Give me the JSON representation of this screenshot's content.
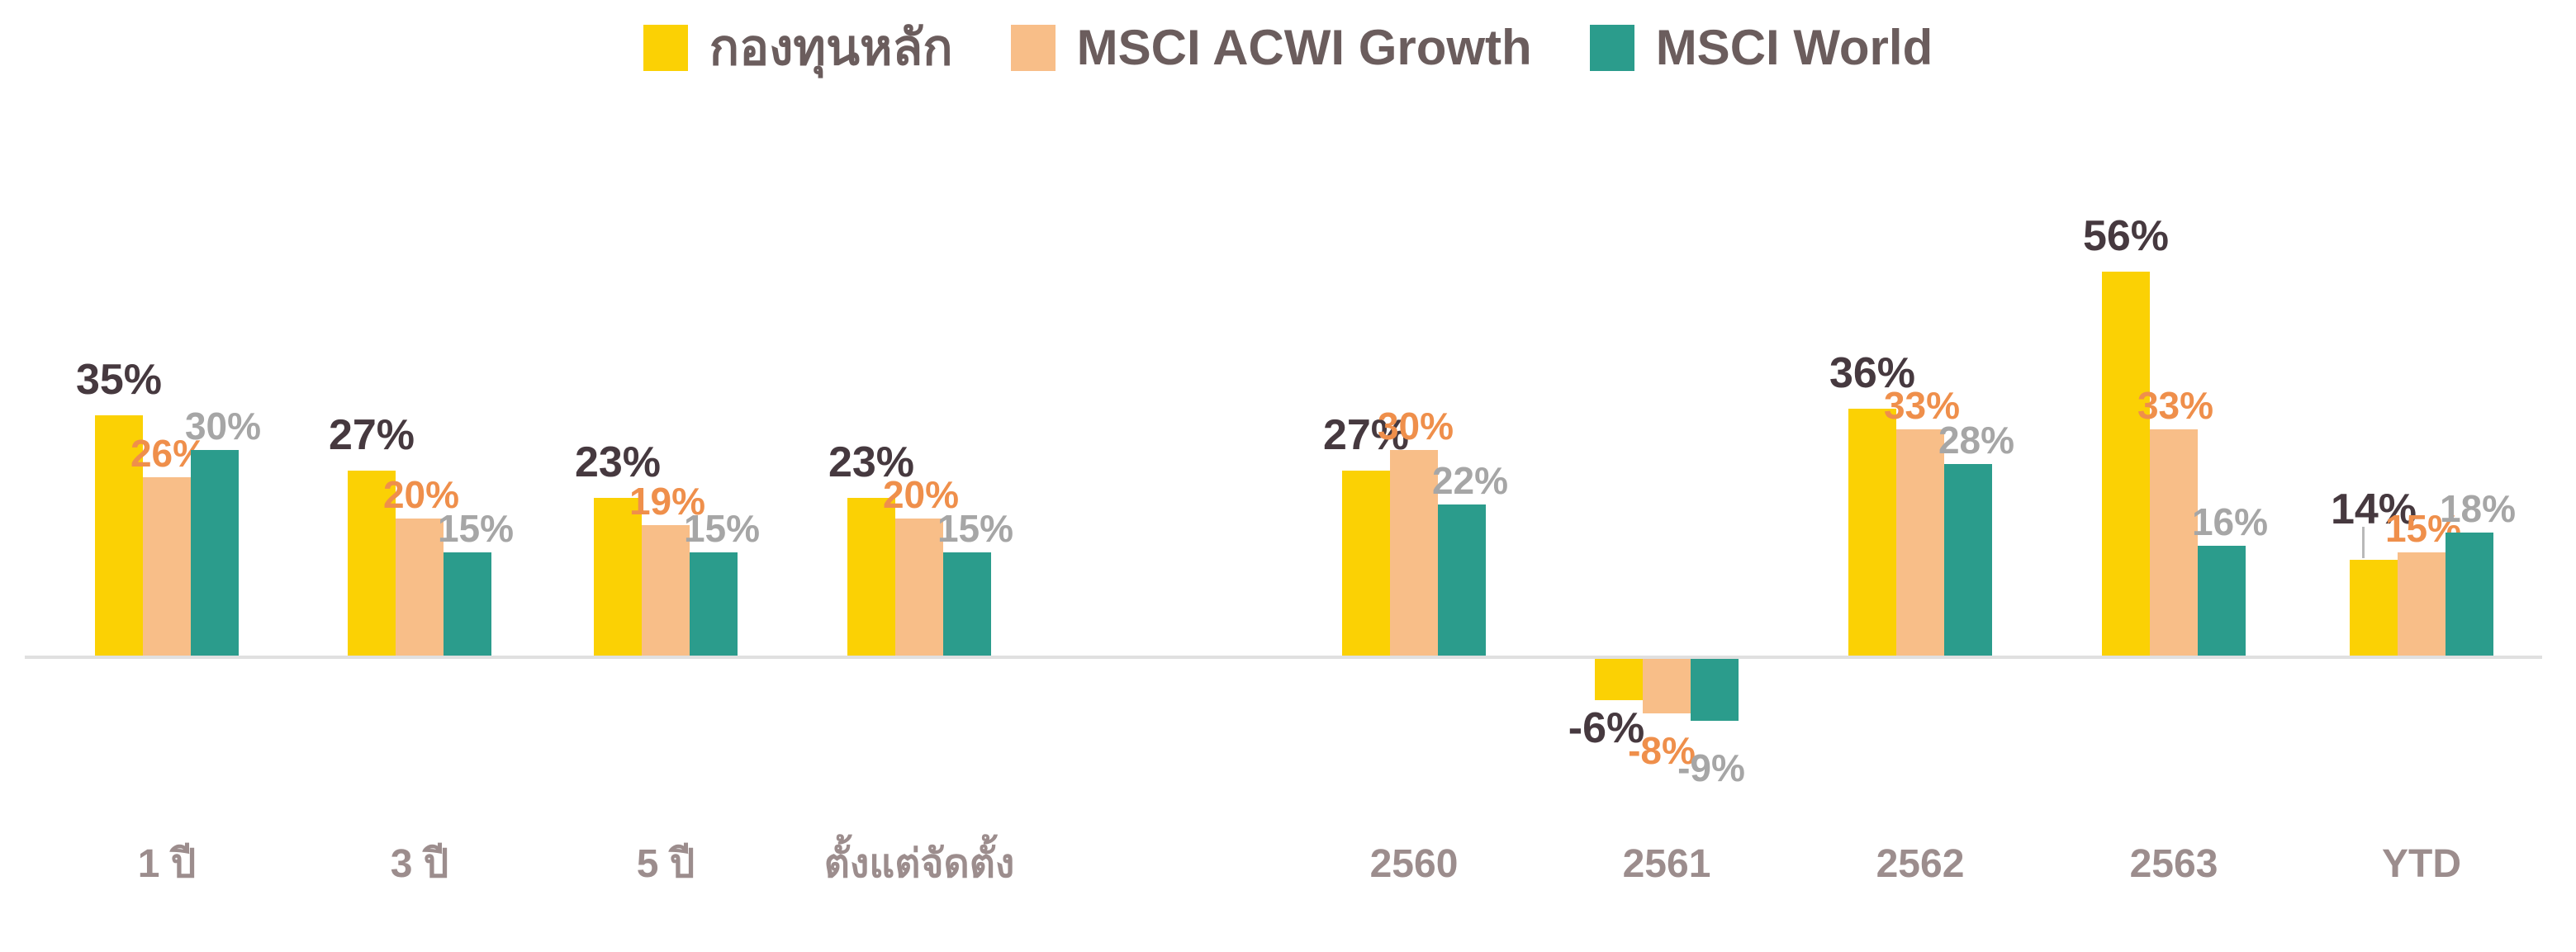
{
  "legend": {
    "items": [
      {
        "label": "กองทุนหลัก",
        "color": "#FBD104",
        "swatch_icon": "square-swatch"
      },
      {
        "label": "MSCI ACWI Growth",
        "color": "#F8BE88",
        "swatch_icon": "square-swatch"
      },
      {
        "label": "MSCI World",
        "color": "#2B9C8C",
        "swatch_icon": "square-swatch"
      }
    ]
  },
  "chart_data": {
    "type": "bar",
    "title": "",
    "xlabel": "",
    "ylabel": "",
    "unit": "%",
    "grid": false,
    "legend_position": "top-center",
    "ylim": [
      -9,
      56
    ],
    "categories": [
      "1 ปี",
      "3 ปี",
      "5 ปี",
      "ตั้งแต่จัดตั้ง",
      "2560",
      "2561",
      "2562",
      "2563",
      "YTD"
    ],
    "series": [
      {
        "name": "กองทุนหลัก",
        "color": "#FBD104",
        "label_color": "#46393F",
        "values": [
          35,
          27,
          23,
          23,
          27,
          -6,
          36,
          56,
          14
        ]
      },
      {
        "name": "MSCI ACWI Growth",
        "color": "#F8BE88",
        "label_color": "#EF8F4B",
        "values": [
          26,
          20,
          19,
          20,
          30,
          -8,
          33,
          33,
          15
        ]
      },
      {
        "name": "MSCI World",
        "color": "#2B9C8C",
        "label_color": "#A6A6A6",
        "values": [
          30,
          15,
          15,
          15,
          22,
          -9,
          28,
          16,
          18
        ]
      }
    ],
    "axis_label_color": "#9C8D8D",
    "baseline_color": "#E0E0E0",
    "annotations": [
      {
        "type": "leader-line",
        "category": "YTD",
        "series": "กองทุนหลัก"
      }
    ]
  }
}
